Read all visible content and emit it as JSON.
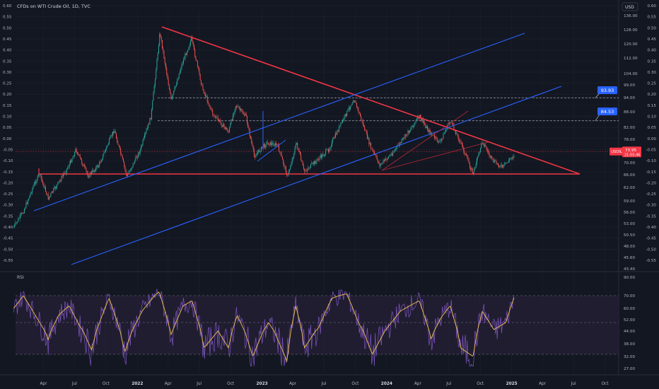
{
  "header": {
    "title": "CFDs on WTI Crude Oil, 1D, TVC"
  },
  "currency": "USD",
  "colors": {
    "background": "#131722",
    "grid": "#1e222d",
    "axis_text": "#b2b5be",
    "candle_up": "#26a69a",
    "candle_down": "#ef5350",
    "trend_red": "#f23645",
    "trend_blue": "#2962ff",
    "rsi_line": "#7e57c2",
    "rsi_ma": "#f0c34b",
    "rsi_band": "#231e33",
    "price_tag": "#f23645",
    "label_blue": "#2962ff"
  },
  "price_tag": {
    "symbol": "USOIL",
    "price": "73.95",
    "countdown": "21:55:46"
  },
  "labels": {
    "level_upper": "93.93",
    "level_lower": "84.53"
  },
  "rsi_label": "RSI",
  "chart_data": [
    {
      "type": "line",
      "name": "main",
      "left_ticks": [
        "0.60",
        "0.55",
        "0.50",
        "0.45",
        "0.40",
        "0.35",
        "0.30",
        "0.25",
        "0.20",
        "0.15",
        "0.10",
        "0.05",
        "0.00",
        "-0.05",
        "-0.10",
        "-0.15",
        "-0.20",
        "-0.25",
        "-0.30",
        "-0.35",
        "-0.40",
        "-0.45",
        "-0.50",
        "-0.55"
      ],
      "left_tick_values": [
        0.6,
        0.55,
        0.5,
        0.45,
        0.4,
        0.35,
        0.3,
        0.25,
        0.2,
        0.15,
        0.1,
        0.05,
        0.0,
        -0.05,
        -0.1,
        -0.15,
        -0.2,
        -0.25,
        -0.3,
        -0.35,
        -0.4,
        -0.45,
        -0.5,
        -0.55
      ],
      "right_ticks": [
        "136.00",
        "128.00",
        "120.00",
        "112.00",
        "104.00",
        "99.00",
        "94.00",
        "88.00",
        "82.00",
        "78.00",
        "74.00",
        "70.00",
        "66.00",
        "62.00",
        "59.00",
        "56.00",
        "53.00",
        "50.50",
        "48.00",
        "45.60",
        "43.40"
      ],
      "right_tick_values": [
        136,
        128,
        120,
        112,
        104,
        99,
        94,
        88,
        82,
        78,
        74,
        70,
        66,
        62,
        59,
        56,
        53,
        50.5,
        48,
        45.6,
        43.4
      ],
      "right_ticks_secondary": [
        "0.60",
        "0.55",
        "0.50",
        "0.45",
        "0.40",
        "0.35",
        "0.30",
        "0.25",
        "0.20",
        "0.15",
        "0.10",
        "0.05",
        "0.00",
        "-0.05",
        "-0.10",
        "-0.15",
        "-0.20",
        "-0.25",
        "-0.30",
        "-0.35",
        "-0.40",
        "-0.45",
        "-0.50",
        "-0.55"
      ],
      "x_ticks": [
        "Apr",
        "Jul",
        "Oct",
        "2022",
        "Apr",
        "Jul",
        "Oct",
        "2023",
        "Apr",
        "Jul",
        "Oct",
        "2024",
        "Apr",
        "Jul",
        "Oct",
        "2025",
        "Apr",
        "Jul",
        "Oct"
      ],
      "x_tick_dates": [
        "2021-04",
        "2021-07",
        "2021-10",
        "2022-01",
        "2022-04",
        "2022-07",
        "2022-10",
        "2023-01",
        "2023-04",
        "2023-07",
        "2023-10",
        "2024-01",
        "2024-04",
        "2024-07",
        "2024-10",
        "2025-01",
        "2025-04",
        "2025-07",
        "2025-10"
      ],
      "price_path": [
        [
          "2021-01-04",
          -0.4
        ],
        [
          "2021-02-01",
          -0.33
        ],
        [
          "2021-03-01",
          -0.22
        ],
        [
          "2021-03-20",
          -0.16
        ],
        [
          "2021-04-15",
          -0.27
        ],
        [
          "2021-05-15",
          -0.2
        ],
        [
          "2021-06-15",
          -0.12
        ],
        [
          "2021-07-05",
          -0.05
        ],
        [
          "2021-08-10",
          -0.17
        ],
        [
          "2021-09-10",
          -0.12
        ],
        [
          "2021-10-25",
          0.04
        ],
        [
          "2021-12-01",
          -0.17
        ],
        [
          "2022-01-10",
          -0.05
        ],
        [
          "2022-02-10",
          0.1
        ],
        [
          "2022-03-08",
          0.48
        ],
        [
          "2022-04-10",
          0.17
        ],
        [
          "2022-05-10",
          0.33
        ],
        [
          "2022-06-08",
          0.45
        ],
        [
          "2022-07-10",
          0.23
        ],
        [
          "2022-08-10",
          0.11
        ],
        [
          "2022-09-25",
          0.03
        ],
        [
          "2022-10-15",
          0.15
        ],
        [
          "2022-11-15",
          0.1
        ],
        [
          "2022-12-09",
          -0.08
        ],
        [
          "2023-01-15",
          -0.02
        ],
        [
          "2023-02-15",
          -0.03
        ],
        [
          "2023-03-17",
          -0.17
        ],
        [
          "2023-04-12",
          -0.02
        ],
        [
          "2023-05-04",
          -0.15
        ],
        [
          "2023-06-10",
          -0.1
        ],
        [
          "2023-07-15",
          -0.05
        ],
        [
          "2023-08-15",
          0.05
        ],
        [
          "2023-09-27",
          0.18
        ],
        [
          "2023-10-20",
          0.08
        ],
        [
          "2023-11-15",
          -0.04
        ],
        [
          "2023-12-12",
          -0.12
        ],
        [
          "2024-01-15",
          -0.07
        ],
        [
          "2024-02-15",
          -0.01
        ],
        [
          "2024-04-05",
          0.1
        ],
        [
          "2024-05-05",
          0.03
        ],
        [
          "2024-06-04",
          -0.02
        ],
        [
          "2024-07-05",
          0.08
        ],
        [
          "2024-08-05",
          -0.02
        ],
        [
          "2024-09-10",
          -0.16
        ],
        [
          "2024-10-07",
          -0.01
        ],
        [
          "2024-11-05",
          -0.1
        ],
        [
          "2024-12-05",
          -0.13
        ],
        [
          "2025-01-10",
          -0.07
        ]
      ],
      "horizontal_levels": [
        {
          "value": 93.93,
          "style": "dashed"
        },
        {
          "value": 84.53,
          "style": "dashed"
        },
        {
          "value": 73.95,
          "style": "dotted"
        }
      ]
    },
    {
      "type": "line",
      "name": "RSI",
      "y_ticks": [
        "90.00",
        "70.00",
        "60.00",
        "52.00",
        "44.00",
        "38.00",
        "32.00",
        "27.00"
      ],
      "y_tick_values": [
        90,
        70,
        60,
        52,
        44,
        38,
        32,
        27
      ],
      "bands": {
        "upper": 70,
        "middle": 50,
        "lower": 30
      },
      "rsi_keypoints": [
        [
          "2021-01-04",
          60
        ],
        [
          "2021-02-01",
          70
        ],
        [
          "2021-03-01",
          58
        ],
        [
          "2021-04-15",
          40
        ],
        [
          "2021-05-15",
          55
        ],
        [
          "2021-06-15",
          62
        ],
        [
          "2021-07-15",
          48
        ],
        [
          "2021-08-20",
          35
        ],
        [
          "2021-10-10",
          68
        ],
        [
          "2021-11-25",
          34
        ],
        [
          "2022-01-15",
          58
        ],
        [
          "2022-03-05",
          74
        ],
        [
          "2022-04-10",
          42
        ],
        [
          "2022-05-15",
          62
        ],
        [
          "2022-06-10",
          66
        ],
        [
          "2022-07-15",
          36
        ],
        [
          "2022-08-25",
          44
        ],
        [
          "2022-09-25",
          36
        ],
        [
          "2022-10-20",
          55
        ],
        [
          "2022-12-05",
          32
        ],
        [
          "2023-01-20",
          50
        ],
        [
          "2023-03-15",
          30
        ],
        [
          "2023-04-10",
          62
        ],
        [
          "2023-05-05",
          36
        ],
        [
          "2023-06-15",
          46
        ],
        [
          "2023-07-25",
          68
        ],
        [
          "2023-09-05",
          72
        ],
        [
          "2023-10-10",
          50
        ],
        [
          "2023-11-20",
          33
        ],
        [
          "2023-12-20",
          42
        ],
        [
          "2024-02-10",
          58
        ],
        [
          "2024-04-05",
          66
        ],
        [
          "2024-05-10",
          40
        ],
        [
          "2024-06-10",
          54
        ],
        [
          "2024-07-05",
          62
        ],
        [
          "2024-08-05",
          36
        ],
        [
          "2024-09-10",
          32
        ],
        [
          "2024-10-07",
          58
        ],
        [
          "2024-11-10",
          45
        ],
        [
          "2024-12-15",
          50
        ],
        [
          "2025-01-10",
          70
        ]
      ]
    }
  ]
}
